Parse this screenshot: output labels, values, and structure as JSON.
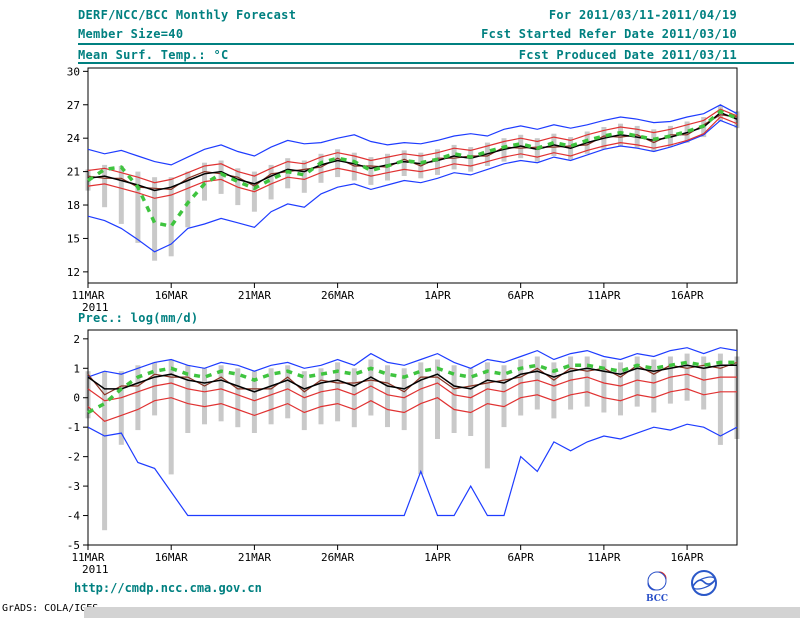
{
  "header": {
    "title": "DERF/NCC/BCC Monthly Forecast",
    "forecast_range": "For 2011/03/11-2011/04/19",
    "member_size": "Member Size=40",
    "refer_date": "Fcst Started Refer Date 2011/03/10",
    "produced_date": "Fcst Produced Date 2011/03/11"
  },
  "footer": {
    "url": "http://cmdp.ncc.cma.gov.cn",
    "credit": "GrADS: COLA/IGES",
    "bcc_label": "BCC"
  },
  "colors": {
    "header_text": "#008080",
    "axis": "#000000",
    "ensemble_bar": "#c9c9c9",
    "minmax_line": "#1e3cff",
    "quartile_line": "#e03232",
    "mean_line": "#000000",
    "control_line": "#8a3324",
    "median_line": "#3fc43f"
  },
  "chart_data": [
    {
      "type": "line",
      "title": "Mean Surf. Temp.: °C",
      "x_year": "2011",
      "days_total": 40,
      "x_tick_labels": [
        "11MAR",
        "16MAR",
        "21MAR",
        "26MAR",
        "1APR",
        "6APR",
        "11APR",
        "16APR"
      ],
      "x_tick_positions": [
        0,
        5,
        10,
        15,
        21,
        26,
        31,
        36
      ],
      "yticks": [
        12,
        15,
        18,
        21,
        24,
        27,
        30
      ],
      "ylim": [
        11,
        30.3
      ],
      "grid": false,
      "legend": false,
      "bars": {
        "name": "ensemble-spread",
        "color": "#c9c9c9",
        "low": [
          19.3,
          17.8,
          16.3,
          14.6,
          13.0,
          13.4,
          16.0,
          18.4,
          19.0,
          18.0,
          17.4,
          18.5,
          19.5,
          19.1,
          20.0,
          20.5,
          20.2,
          19.8,
          20.2,
          20.6,
          20.4,
          20.7,
          21.2,
          21.0,
          21.5,
          21.9,
          22.2,
          21.9,
          22.4,
          22.1,
          22.6,
          23.0,
          23.3,
          23.1,
          22.8,
          23.2,
          23.6,
          24.1,
          25.5,
          24.9
        ],
        "high": [
          21.2,
          21.6,
          21.5,
          21.0,
          20.5,
          20.5,
          21.0,
          21.8,
          22.0,
          21.3,
          21.0,
          21.6,
          22.2,
          22.0,
          22.6,
          23.0,
          22.7,
          22.3,
          22.6,
          22.9,
          22.7,
          23.0,
          23.4,
          23.2,
          23.6,
          24.0,
          24.3,
          24.0,
          24.4,
          24.1,
          24.6,
          25.0,
          25.3,
          25.1,
          24.8,
          25.1,
          25.5,
          25.9,
          26.9,
          26.4
        ]
      },
      "series": [
        {
          "name": "max",
          "color": "#1e3cff",
          "width": 1.2,
          "values": [
            23.0,
            22.6,
            22.9,
            22.4,
            21.9,
            21.6,
            22.3,
            23.0,
            23.4,
            22.8,
            22.4,
            23.2,
            23.8,
            23.5,
            23.6,
            24.0,
            24.3,
            23.7,
            23.4,
            23.6,
            23.5,
            23.8,
            24.2,
            24.4,
            24.2,
            24.8,
            25.1,
            24.8,
            25.2,
            24.9,
            25.2,
            25.6,
            25.9,
            25.7,
            25.4,
            25.5,
            25.9,
            26.2,
            27.0,
            26.2
          ]
        },
        {
          "name": "min",
          "color": "#1e3cff",
          "width": 1.2,
          "values": [
            17.0,
            16.6,
            15.9,
            14.9,
            13.8,
            14.5,
            15.9,
            16.3,
            16.8,
            16.4,
            16.0,
            17.4,
            18.1,
            17.8,
            19.0,
            19.6,
            19.9,
            19.4,
            19.8,
            20.2,
            20.0,
            20.4,
            20.9,
            20.7,
            21.2,
            21.7,
            22.0,
            21.8,
            22.3,
            22.0,
            22.5,
            23.0,
            23.3,
            23.1,
            22.8,
            23.2,
            23.7,
            24.3,
            25.6,
            25.0
          ]
        },
        {
          "name": "upper-quartile",
          "color": "#e03232",
          "width": 1.2,
          "values": [
            21.1,
            21.3,
            20.9,
            20.5,
            20.0,
            20.3,
            20.9,
            21.5,
            21.7,
            21.0,
            20.6,
            21.3,
            21.9,
            21.7,
            22.3,
            22.7,
            22.4,
            22.0,
            22.3,
            22.6,
            22.4,
            22.7,
            23.1,
            22.9,
            23.3,
            23.7,
            24.0,
            23.7,
            24.1,
            23.8,
            24.3,
            24.7,
            25.0,
            24.8,
            24.5,
            24.8,
            25.2,
            25.6,
            26.6,
            26.0
          ]
        },
        {
          "name": "lower-quartile",
          "color": "#e03232",
          "width": 1.2,
          "values": [
            19.7,
            19.9,
            19.5,
            19.1,
            18.6,
            18.9,
            19.5,
            20.1,
            20.3,
            19.6,
            19.2,
            19.9,
            20.5,
            20.3,
            20.9,
            21.3,
            21.0,
            20.6,
            20.9,
            21.2,
            21.0,
            21.3,
            21.7,
            21.5,
            21.9,
            22.3,
            22.6,
            22.3,
            22.7,
            22.4,
            22.9,
            23.3,
            23.6,
            23.4,
            23.1,
            23.4,
            23.8,
            24.4,
            25.9,
            25.3
          ]
        },
        {
          "name": "control",
          "color": "#8a3324",
          "width": 1.2,
          "values": [
            20.6,
            20.4,
            20.4,
            19.6,
            19.5,
            19.4,
            20.4,
            21.0,
            20.8,
            20.5,
            19.7,
            20.8,
            21.0,
            21.2,
            21.4,
            22.2,
            21.5,
            21.5,
            21.4,
            22.1,
            21.5,
            22.2,
            22.2,
            22.4,
            22.4,
            23.2,
            23.1,
            23.2,
            23.2,
            23.3,
            23.4,
            24.2,
            24.1,
            24.3,
            23.6,
            24.3,
            24.3,
            25.2,
            26.1,
            25.9
          ]
        },
        {
          "name": "ensemble-mean",
          "color": "#000000",
          "width": 1.5,
          "values": [
            20.4,
            20.6,
            20.2,
            19.8,
            19.3,
            19.6,
            20.2,
            20.8,
            21.0,
            20.3,
            19.9,
            20.6,
            21.2,
            21.0,
            21.6,
            22.0,
            21.7,
            21.3,
            21.6,
            21.9,
            21.7,
            22.0,
            22.4,
            22.2,
            22.6,
            23.0,
            23.3,
            23.0,
            23.4,
            23.1,
            23.6,
            24.0,
            24.3,
            24.1,
            23.8,
            24.1,
            24.5,
            25.0,
            26.3,
            25.7
          ]
        },
        {
          "name": "median",
          "color": "#3fc43f",
          "width": 3.5,
          "dash": "6 6",
          "values": [
            20.2,
            21.2,
            21.4,
            19.6,
            16.4,
            16.1,
            18.2,
            19.9,
            20.8,
            20.1,
            19.5,
            20.3,
            21.0,
            20.7,
            21.8,
            22.2,
            21.9,
            21.1,
            21.5,
            22.0,
            21.8,
            22.1,
            22.6,
            22.3,
            22.8,
            23.2,
            23.5,
            23.1,
            23.6,
            23.3,
            23.8,
            24.2,
            24.5,
            24.2,
            23.9,
            24.2,
            24.6,
            25.1,
            26.4,
            25.8
          ]
        }
      ]
    },
    {
      "type": "line",
      "title": "Prec.: log(mm/d)",
      "x_year": "2011",
      "days_total": 40,
      "x_tick_labels": [
        "11MAR",
        "16MAR",
        "21MAR",
        "26MAR",
        "1APR",
        "6APR",
        "11APR",
        "16APR"
      ],
      "x_tick_positions": [
        0,
        5,
        10,
        15,
        21,
        26,
        31,
        36
      ],
      "yticks": [
        -5,
        -4,
        -3,
        -2,
        -1,
        0,
        1,
        2
      ],
      "ylim": [
        -5,
        2.3
      ],
      "grid": false,
      "legend": false,
      "bars": {
        "name": "ensemble-spread",
        "color": "#c9c9c9",
        "low": [
          -0.7,
          -4.5,
          -1.6,
          -1.1,
          -0.6,
          -2.6,
          -1.2,
          -0.9,
          -0.8,
          -1.0,
          -1.2,
          -0.9,
          -0.7,
          -1.1,
          -0.9,
          -0.8,
          -1.0,
          -0.6,
          -1.0,
          -1.1,
          -2.6,
          -1.4,
          -1.2,
          -1.3,
          -2.4,
          -1.0,
          -0.6,
          -0.4,
          -0.7,
          -0.4,
          -0.3,
          -0.5,
          -0.6,
          -0.3,
          -0.5,
          -0.2,
          -0.1,
          -0.4,
          -1.6,
          -1.4
        ],
        "high": [
          0.9,
          0.9,
          0.9,
          1.1,
          1.2,
          1.3,
          1.1,
          1.0,
          1.1,
          1.0,
          0.9,
          1.0,
          1.1,
          0.9,
          1.0,
          1.2,
          1.0,
          1.3,
          1.1,
          1.0,
          1.2,
          1.3,
          1.1,
          1.0,
          1.2,
          1.1,
          1.3,
          1.4,
          1.2,
          1.4,
          1.4,
          1.3,
          1.2,
          1.4,
          1.3,
          1.4,
          1.5,
          1.4,
          1.5,
          1.4
        ]
      },
      "series": [
        {
          "name": "max",
          "color": "#1e3cff",
          "width": 1.2,
          "values": [
            0.7,
            0.9,
            0.8,
            1.0,
            1.2,
            1.3,
            1.1,
            1.0,
            1.2,
            1.1,
            0.9,
            1.1,
            1.2,
            1.0,
            1.1,
            1.3,
            1.1,
            1.5,
            1.2,
            1.1,
            1.3,
            1.5,
            1.2,
            1.0,
            1.3,
            1.2,
            1.4,
            1.6,
            1.3,
            1.5,
            1.6,
            1.4,
            1.3,
            1.5,
            1.4,
            1.6,
            1.7,
            1.5,
            1.7,
            1.6
          ]
        },
        {
          "name": "min",
          "color": "#1e3cff",
          "width": 1.2,
          "values": [
            -1.0,
            -1.3,
            -1.2,
            -2.2,
            -2.4,
            -3.2,
            -4.0,
            -4.0,
            -4.0,
            -4.0,
            -4.0,
            -4.0,
            -4.0,
            -4.0,
            -4.0,
            -4.0,
            -4.0,
            -4.0,
            -4.0,
            -4.0,
            -2.5,
            -4.0,
            -4.0,
            -3.0,
            -4.0,
            -4.0,
            -2.0,
            -2.5,
            -1.5,
            -1.8,
            -1.5,
            -1.3,
            -1.4,
            -1.2,
            -1.0,
            -1.1,
            -0.9,
            -1.0,
            -1.3,
            -1.0
          ]
        },
        {
          "name": "upper-quartile",
          "color": "#e03232",
          "width": 1.2,
          "values": [
            0.3,
            -0.1,
            0.0,
            0.2,
            0.4,
            0.5,
            0.3,
            0.2,
            0.3,
            0.1,
            -0.1,
            0.1,
            0.3,
            0.0,
            0.2,
            0.3,
            0.1,
            0.4,
            0.1,
            0.0,
            0.3,
            0.5,
            0.1,
            0.0,
            0.3,
            0.2,
            0.5,
            0.6,
            0.4,
            0.6,
            0.7,
            0.5,
            0.4,
            0.6,
            0.5,
            0.7,
            0.8,
            0.6,
            0.7,
            0.7
          ]
        },
        {
          "name": "lower-quartile",
          "color": "#e03232",
          "width": 1.2,
          "values": [
            -0.3,
            -0.8,
            -0.6,
            -0.4,
            -0.1,
            0.0,
            -0.2,
            -0.3,
            -0.2,
            -0.4,
            -0.6,
            -0.4,
            -0.2,
            -0.5,
            -0.3,
            -0.2,
            -0.4,
            -0.1,
            -0.4,
            -0.5,
            -0.2,
            0.0,
            -0.4,
            -0.5,
            -0.2,
            -0.3,
            0.0,
            0.1,
            -0.1,
            0.1,
            0.2,
            0.0,
            -0.1,
            0.1,
            0.0,
            0.2,
            0.3,
            0.1,
            0.2,
            0.2
          ]
        },
        {
          "name": "control",
          "color": "#8a3324",
          "width": 1.2,
          "values": [
            0.8,
            0.1,
            0.4,
            0.4,
            0.8,
            0.7,
            0.7,
            0.4,
            0.7,
            0.3,
            0.3,
            0.3,
            0.7,
            0.2,
            0.6,
            0.5,
            0.5,
            0.6,
            0.5,
            0.2,
            0.7,
            0.7,
            0.3,
            0.4,
            0.5,
            0.6,
            0.7,
            1.0,
            0.6,
            1.0,
            0.9,
            1.0,
            0.7,
            1.1,
            0.8,
            1.1,
            1.0,
            1.1,
            1.0,
            1.2
          ]
        },
        {
          "name": "ensemble-mean",
          "color": "#000000",
          "width": 1.5,
          "values": [
            0.7,
            0.3,
            0.3,
            0.5,
            0.7,
            0.8,
            0.6,
            0.5,
            0.6,
            0.4,
            0.2,
            0.4,
            0.6,
            0.3,
            0.5,
            0.6,
            0.4,
            0.7,
            0.4,
            0.3,
            0.6,
            0.8,
            0.4,
            0.3,
            0.6,
            0.5,
            0.8,
            0.9,
            0.7,
            0.9,
            1.0,
            0.9,
            0.8,
            1.0,
            0.9,
            1.0,
            1.1,
            1.0,
            1.1,
            1.1
          ]
        },
        {
          "name": "median",
          "color": "#3fc43f",
          "width": 3.5,
          "dash": "6 6",
          "values": [
            -0.5,
            -0.2,
            0.3,
            0.7,
            0.9,
            1.0,
            0.8,
            0.7,
            0.9,
            0.8,
            0.6,
            0.8,
            0.9,
            0.7,
            0.8,
            0.9,
            0.8,
            1.0,
            0.8,
            0.7,
            0.9,
            1.0,
            0.8,
            0.7,
            0.9,
            0.8,
            1.0,
            1.1,
            0.9,
            1.1,
            1.1,
            1.0,
            0.9,
            1.1,
            1.0,
            1.1,
            1.2,
            1.1,
            1.2,
            1.2
          ]
        }
      ]
    }
  ]
}
